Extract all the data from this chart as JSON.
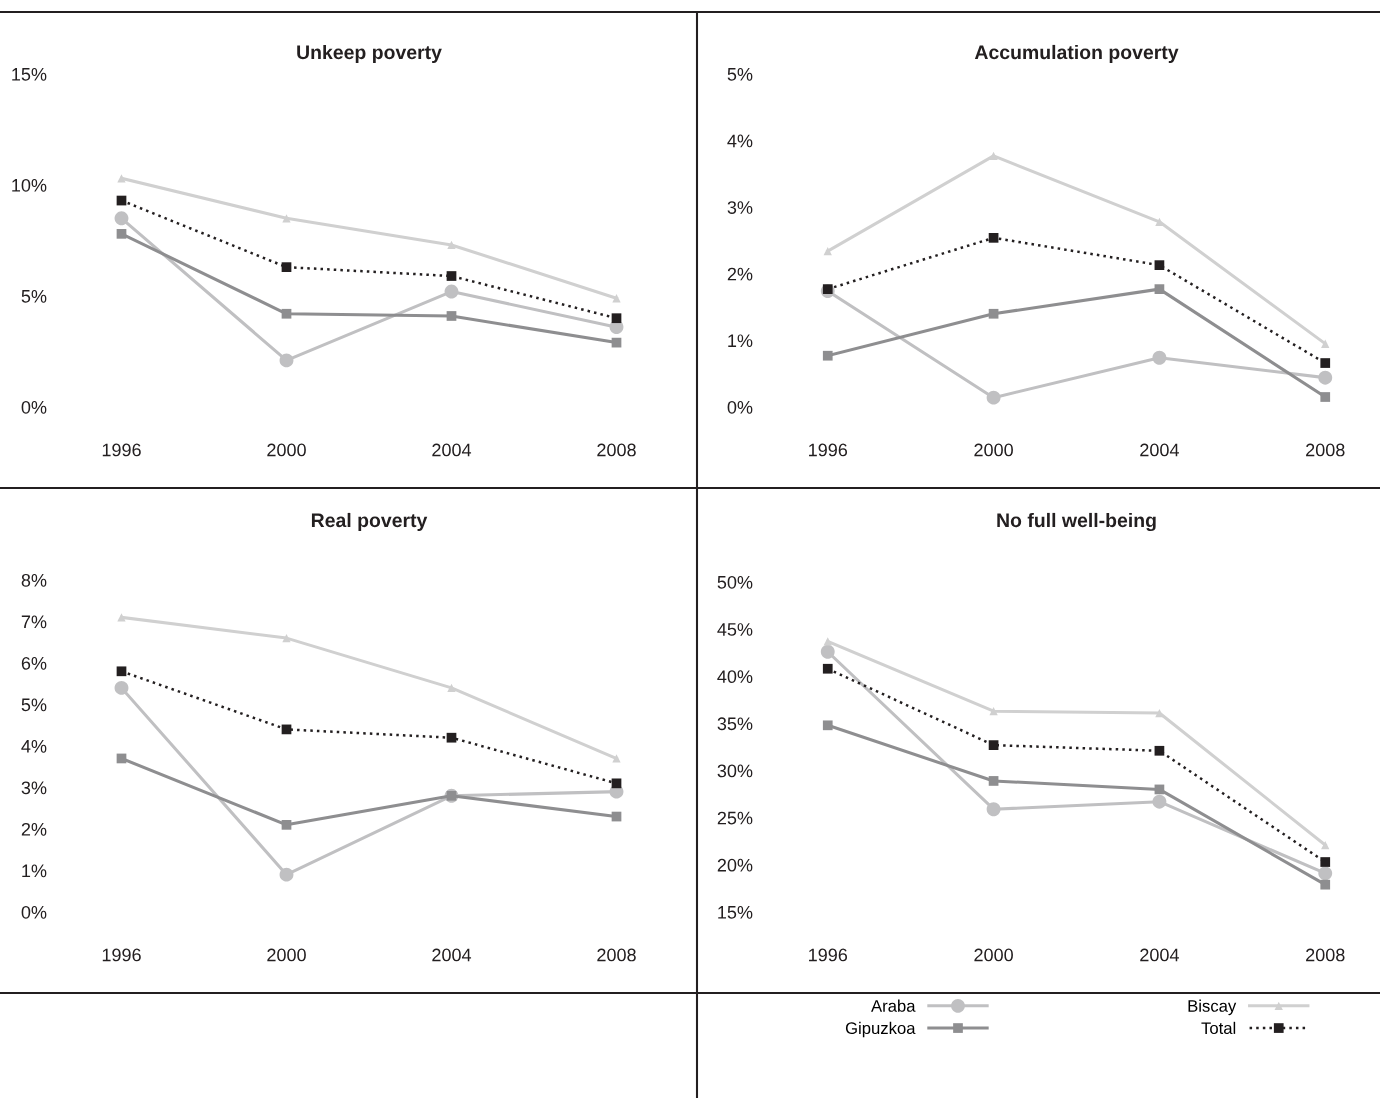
{
  "chart_data": [
    {
      "type": "line",
      "title": "Unkeep poverty",
      "categories": [
        "1996",
        "2000",
        "2004",
        "2008"
      ],
      "ylim": [
        0,
        15
      ],
      "yticks": [
        {
          "value": 0,
          "label": "0%"
        },
        {
          "value": 5,
          "label": "5%"
        },
        {
          "value": 10,
          "label": "10%"
        },
        {
          "value": 15,
          "label": "15%"
        }
      ],
      "grid": false,
      "series": [
        {
          "color": "#c0c0c2",
          "marker": "circle",
          "line_style": "solid",
          "values": [
            8.5,
            2.1,
            5.2,
            3.6
          ]
        },
        {
          "color": "#8e8e90",
          "marker": "square",
          "line_style": "solid",
          "values": [
            7.8,
            4.2,
            4.1,
            2.9
          ]
        },
        {
          "color": "#d0d0d0",
          "marker": "triangle",
          "line_style": "solid",
          "values": [
            10.3,
            8.5,
            7.3,
            4.9
          ]
        },
        {
          "color": "#231f20",
          "marker": "square",
          "line_style": "dotted",
          "values": [
            9.3,
            6.3,
            5.9,
            4.0
          ]
        }
      ]
    },
    {
      "type": "line",
      "title": "Accumulation poverty",
      "categories": [
        "1996",
        "2000",
        "2004",
        "2008"
      ],
      "ylim": [
        0,
        5
      ],
      "yticks": [
        {
          "value": 0,
          "label": "0%"
        },
        {
          "value": 1,
          "label": "1%"
        },
        {
          "value": 2,
          "label": "2%"
        },
        {
          "value": 3,
          "label": "3%"
        },
        {
          "value": 4,
          "label": "4%"
        },
        {
          "value": 5,
          "label": "5%"
        }
      ],
      "grid": false,
      "series": [
        {
          "color": "#c0c0c2",
          "marker": "circle",
          "line_style": "solid",
          "values": [
            1.74,
            0.14,
            0.74,
            0.44
          ]
        },
        {
          "color": "#8e8e90",
          "marker": "square",
          "line_style": "solid",
          "values": [
            0.77,
            1.4,
            1.77,
            0.15
          ]
        },
        {
          "color": "#d0d0d0",
          "marker": "triangle",
          "line_style": "solid",
          "values": [
            2.34,
            3.77,
            2.78,
            0.95
          ]
        },
        {
          "color": "#231f20",
          "marker": "square",
          "line_style": "dotted",
          "values": [
            1.77,
            2.54,
            2.13,
            0.66
          ]
        }
      ]
    },
    {
      "type": "line",
      "title": "Real poverty",
      "categories": [
        "1996",
        "2000",
        "2004",
        "2008"
      ],
      "ylim": [
        0,
        8
      ],
      "yticks": [
        {
          "value": 0,
          "label": "0%"
        },
        {
          "value": 1,
          "label": "1%"
        },
        {
          "value": 2,
          "label": "2%"
        },
        {
          "value": 3,
          "label": "3%"
        },
        {
          "value": 4,
          "label": "4%"
        },
        {
          "value": 5,
          "label": "5%"
        },
        {
          "value": 6,
          "label": "6%"
        },
        {
          "value": 7,
          "label": "7%"
        },
        {
          "value": 8,
          "label": "8%"
        }
      ],
      "grid": false,
      "series": [
        {
          "color": "#c0c0c2",
          "marker": "circle",
          "line_style": "solid",
          "values": [
            5.4,
            0.9,
            2.8,
            2.9
          ]
        },
        {
          "color": "#8e8e90",
          "marker": "square",
          "line_style": "solid",
          "values": [
            3.7,
            2.1,
            2.8,
            2.3
          ]
        },
        {
          "color": "#d0d0d0",
          "marker": "triangle",
          "line_style": "solid",
          "values": [
            7.1,
            6.6,
            5.4,
            3.7
          ]
        },
        {
          "color": "#231f20",
          "marker": "square",
          "line_style": "dotted",
          "values": [
            5.8,
            4.4,
            4.2,
            3.1
          ]
        }
      ]
    },
    {
      "type": "line",
      "title": "No full well-being",
      "categories": [
        "1996",
        "2000",
        "2004",
        "2008"
      ],
      "ylim": [
        15,
        50
      ],
      "yticks": [
        {
          "value": 15,
          "label": "15%"
        },
        {
          "value": 20,
          "label": "20%"
        },
        {
          "value": 25,
          "label": "25%"
        },
        {
          "value": 30,
          "label": "30%"
        },
        {
          "value": 35,
          "label": "35%"
        },
        {
          "value": 40,
          "label": "40%"
        },
        {
          "value": 45,
          "label": "45%"
        },
        {
          "value": 50,
          "label": "50%"
        }
      ],
      "grid": false,
      "legend": "bottom",
      "series": [
        {
          "name": "Araba",
          "color": "#c0c0c2",
          "marker": "circle",
          "line_style": "solid",
          "values": [
            42.6,
            25.9,
            26.7,
            19.1
          ]
        },
        {
          "name": "Gipuzkoa",
          "color": "#8e8e90",
          "marker": "square",
          "line_style": "solid",
          "values": [
            34.8,
            28.9,
            28.0,
            17.9
          ]
        },
        {
          "name": "Biscay",
          "color": "#d0d0d0",
          "marker": "triangle",
          "line_style": "solid",
          "values": [
            43.7,
            36.3,
            36.1,
            22.1
          ]
        },
        {
          "name": "Total",
          "color": "#231f20",
          "marker": "square",
          "line_style": "dotted",
          "values": [
            40.8,
            32.7,
            32.1,
            20.3
          ]
        }
      ]
    }
  ]
}
